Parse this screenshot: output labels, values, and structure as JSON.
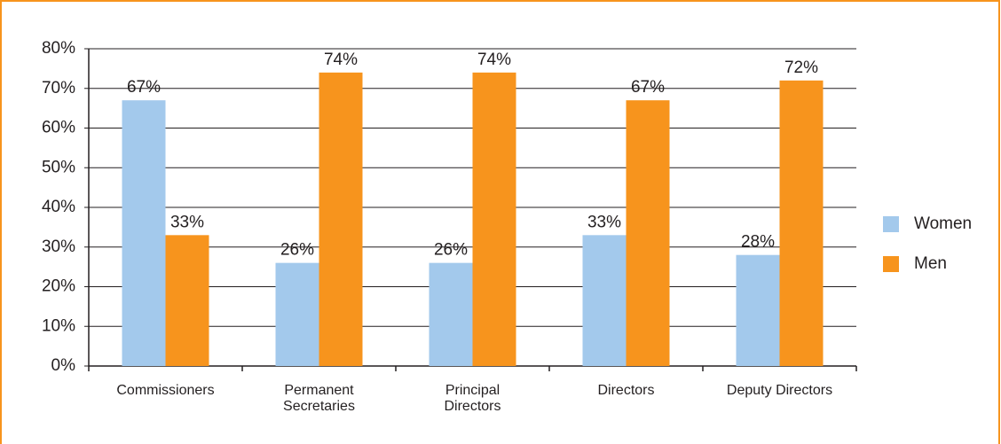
{
  "chart_data": {
    "type": "bar",
    "categories": [
      "Commissioners",
      "Permanent\nSecretaries",
      "Principal\nDirectors",
      "Directors",
      "Deputy Directors"
    ],
    "series": [
      {
        "name": "Women",
        "color": "#a3c9ec",
        "values": [
          67,
          26,
          26,
          33,
          28
        ],
        "value_labels": [
          "67%",
          "26%",
          "26%",
          "33%",
          "28%"
        ]
      },
      {
        "name": "Men",
        "color": "#f7941d",
        "values": [
          33,
          74,
          74,
          67,
          72
        ],
        "value_labels": [
          "33%",
          "74%",
          "74%",
          "67%",
          "72%"
        ]
      }
    ],
    "ylim": [
      0,
      80
    ],
    "yticks": [
      {
        "value": 0,
        "label": "0%"
      },
      {
        "value": 10,
        "label": "10%"
      },
      {
        "value": 20,
        "label": "20%"
      },
      {
        "value": 30,
        "label": "30%"
      },
      {
        "value": 40,
        "label": "40%"
      },
      {
        "value": 50,
        "label": "50%"
      },
      {
        "value": 60,
        "label": "60%"
      },
      {
        "value": 70,
        "label": "70%"
      },
      {
        "value": 80,
        "label": "80%"
      }
    ],
    "grid": true,
    "legend": "right"
  }
}
